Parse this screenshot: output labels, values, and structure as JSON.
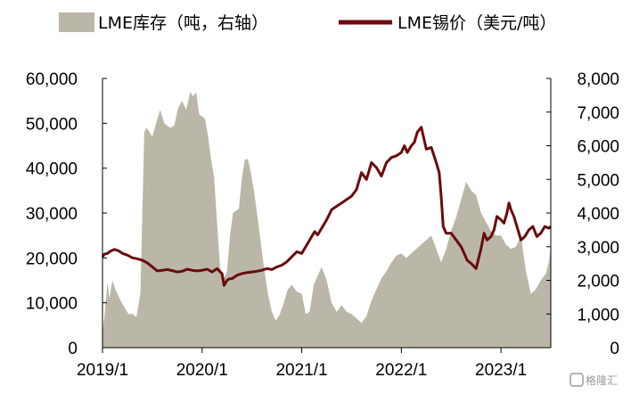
{
  "chart_data": {
    "type": "area",
    "legend": {
      "placement": "top",
      "items": [
        {
          "label": "LME库存（吨，右轴）",
          "kind": "area",
          "color": "#bab7a8"
        },
        {
          "label": "LME锡价（美元/吨）",
          "kind": "line",
          "color": "#6b0a0d"
        }
      ]
    },
    "x_ticks": [
      "2019/1",
      "2020/1",
      "2021/1",
      "2022/1",
      "2023/1"
    ],
    "x_range": [
      2019.0,
      2023.5
    ],
    "y_left": {
      "min": 0,
      "max": 60000,
      "step": 10000,
      "ticks": [
        "0",
        "10,000",
        "20,000",
        "30,000",
        "40,000",
        "50,000",
        "60,000"
      ]
    },
    "y_right": {
      "min": 0,
      "max": 8000,
      "step": 1000,
      "ticks": [
        "0",
        "1,000",
        "2,000",
        "3,000",
        "4,000",
        "5,000",
        "6,000",
        "7,000",
        "8,000"
      ]
    },
    "grid": false,
    "series": [
      {
        "name": "LME库存（吨，右轴）",
        "type": "area",
        "axis": "left",
        "color": "#bab7a8",
        "x": [
          2019.0,
          2019.02,
          2019.05,
          2019.07,
          2019.1,
          2019.13,
          2019.17,
          2019.22,
          2019.26,
          2019.3,
          2019.34,
          2019.38,
          2019.4,
          2019.42,
          2019.44,
          2019.46,
          2019.5,
          2019.55,
          2019.58,
          2019.62,
          2019.65,
          2019.68,
          2019.72,
          2019.76,
          2019.8,
          2019.84,
          2019.88,
          2019.91,
          2019.94,
          2019.97,
          2020.0,
          2020.03,
          2020.06,
          2020.09,
          2020.12,
          2020.15,
          2020.18,
          2020.21,
          2020.25,
          2020.28,
          2020.31,
          2020.34,
          2020.37,
          2020.4,
          2020.43,
          2020.46,
          2020.49,
          2020.52,
          2020.55,
          2020.58,
          2020.62,
          2020.66,
          2020.7,
          2020.74,
          2020.78,
          2020.82,
          2020.86,
          2020.9,
          2020.95,
          2021.0,
          2021.04,
          2021.08,
          2021.12,
          2021.16,
          2021.2,
          2021.25,
          2021.3,
          2021.35,
          2021.4,
          2021.45,
          2021.5,
          2021.55,
          2021.6,
          2021.65,
          2021.7,
          2021.75,
          2021.8,
          2021.85,
          2021.9,
          2021.95,
          2022.0,
          2022.05,
          2022.1,
          2022.15,
          2022.2,
          2022.25,
          2022.3,
          2022.35,
          2022.4,
          2022.45,
          2022.5,
          2022.55,
          2022.6,
          2022.65,
          2022.7,
          2022.75,
          2022.8,
          2022.85,
          2022.9,
          2022.95,
          2023.0,
          2023.05,
          2023.1,
          2023.15,
          2023.2,
          2023.25,
          2023.3,
          2023.35,
          2023.4,
          2023.45,
          2023.48,
          2023.5
        ],
        "values": [
          3500,
          7000,
          14500,
          11000,
          15000,
          13000,
          11000,
          9000,
          7500,
          7500,
          6800,
          12000,
          30000,
          48000,
          49000,
          48500,
          47000,
          51000,
          53000,
          50000,
          49500,
          49000,
          49500,
          53500,
          55000,
          53000,
          57000,
          56000,
          57000,
          52000,
          51500,
          51000,
          47000,
          42000,
          38000,
          28000,
          18000,
          15000,
          17000,
          25000,
          30000,
          30500,
          31000,
          38000,
          42000,
          42000,
          39000,
          35000,
          30000,
          25000,
          18000,
          12000,
          8000,
          6000,
          7500,
          10000,
          13000,
          14000,
          12500,
          12000,
          7500,
          8000,
          14000,
          16000,
          18000,
          15000,
          10000,
          8000,
          9500,
          8000,
          7500,
          6500,
          5500,
          7000,
          10500,
          13000,
          15500,
          17000,
          19000,
          20500,
          21000,
          20000,
          21000,
          22000,
          23000,
          24000,
          25000,
          22000,
          19000,
          22000,
          26000,
          29000,
          33000,
          37000,
          35000,
          34000,
          30000,
          28000,
          26000,
          25000,
          25000,
          23000,
          22000,
          22500,
          25000,
          17000,
          12000,
          13000,
          15000,
          16500,
          19000,
          22500
        ]
      },
      {
        "name": "LME锡价（美元/吨）",
        "type": "line",
        "axis": "right",
        "color": "#6b0a0d",
        "x": [
          2019.0,
          2019.02,
          2019.05,
          2019.08,
          2019.12,
          2019.16,
          2019.2,
          2019.25,
          2019.3,
          2019.35,
          2019.4,
          2019.45,
          2019.5,
          2019.55,
          2019.6,
          2019.65,
          2019.7,
          2019.75,
          2019.8,
          2019.85,
          2019.9,
          2019.95,
          2020.0,
          2020.05,
          2020.1,
          2020.15,
          2020.2,
          2020.22,
          2020.25,
          2020.28,
          2020.3,
          2020.35,
          2020.4,
          2020.45,
          2020.5,
          2020.55,
          2020.6,
          2020.65,
          2020.7,
          2020.75,
          2020.8,
          2020.85,
          2020.9,
          2020.95,
          2021.0,
          2021.03,
          2021.06,
          2021.1,
          2021.13,
          2021.16,
          2021.2,
          2021.25,
          2021.3,
          2021.35,
          2021.4,
          2021.45,
          2021.5,
          2021.55,
          2021.6,
          2021.65,
          2021.7,
          2021.75,
          2021.8,
          2021.85,
          2021.9,
          2021.95,
          2022.0,
          2022.03,
          2022.06,
          2022.1,
          2022.13,
          2022.16,
          2022.2,
          2022.25,
          2022.3,
          2022.35,
          2022.38,
          2022.4,
          2022.42,
          2022.45,
          2022.5,
          2022.55,
          2022.6,
          2022.63,
          2022.66,
          2022.7,
          2022.75,
          2022.8,
          2022.83,
          2022.86,
          2022.9,
          2022.93,
          2022.96,
          2023.0,
          2023.03,
          2023.06,
          2023.08,
          2023.1,
          2023.13,
          2023.16,
          2023.2,
          2023.24,
          2023.28,
          2023.32,
          2023.36,
          2023.4,
          2023.44,
          2023.48,
          2023.5
        ],
        "values": [
          2700,
          2780,
          2800,
          2870,
          2920,
          2880,
          2800,
          2750,
          2670,
          2640,
          2600,
          2520,
          2400,
          2280,
          2300,
          2320,
          2290,
          2250,
          2270,
          2330,
          2300,
          2280,
          2300,
          2330,
          2250,
          2350,
          2200,
          1850,
          2000,
          2050,
          2050,
          2150,
          2200,
          2230,
          2250,
          2270,
          2300,
          2350,
          2320,
          2400,
          2450,
          2550,
          2700,
          2850,
          2800,
          2950,
          3100,
          3300,
          3450,
          3350,
          3550,
          3800,
          4100,
          4200,
          4300,
          4400,
          4500,
          4700,
          5200,
          5000,
          5500,
          5350,
          5100,
          5500,
          5650,
          5700,
          5800,
          6000,
          5800,
          6000,
          6100,
          6400,
          6550,
          5900,
          5950,
          5500,
          5200,
          4500,
          3600,
          3400,
          3400,
          3200,
          3000,
          2800,
          2600,
          2500,
          2350,
          2950,
          3400,
          3200,
          3300,
          3500,
          3900,
          3800,
          3700,
          4000,
          4300,
          4100,
          3900,
          3600,
          3200,
          3300,
          3500,
          3600,
          3300,
          3400,
          3600,
          3550,
          3600
        ]
      }
    ]
  },
  "watermark": "格隆汇"
}
